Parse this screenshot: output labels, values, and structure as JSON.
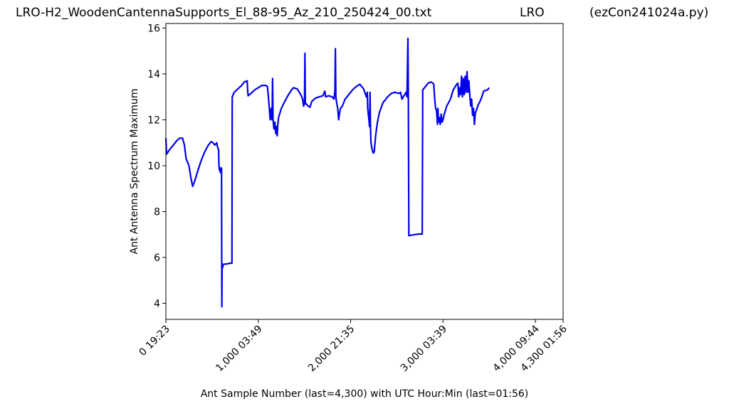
{
  "header": {
    "title_left": "LRO-H2_WoodenCantennaSupports_El_88-95_Az_210_250424_00.txt",
    "title_mid": "LRO",
    "title_right": "(ezCon241024a.py)"
  },
  "chart_data": {
    "type": "line",
    "xlabel": "Ant Sample Number (last=4,300) with UTC Hour:Min (last=01:56)",
    "ylabel": "Ant Antenna Spectrum Maximum",
    "xlim": [
      0,
      4300
    ],
    "ylim": [
      3.3,
      16.2
    ],
    "x_ticks": [
      {
        "value": 0,
        "label": "0  19:23"
      },
      {
        "value": 1000,
        "label": "1,000  03:49"
      },
      {
        "value": 2000,
        "label": "2,000  21:35"
      },
      {
        "value": 3000,
        "label": "3,000  03:39"
      },
      {
        "value": 4000,
        "label": "4,000  09:44"
      },
      {
        "value": 4300,
        "label": "4,300  01:56"
      }
    ],
    "y_ticks": [
      4,
      6,
      8,
      10,
      12,
      14,
      16
    ],
    "grid": false,
    "line_color": "#0000ee",
    "series": [
      {
        "values": [
          [
            0,
            11.2
          ],
          [
            8,
            10.5
          ],
          [
            40,
            10.7
          ],
          [
            80,
            10.9
          ],
          [
            120,
            11.1
          ],
          [
            150,
            11.2
          ],
          [
            180,
            11.2
          ],
          [
            200,
            10.9
          ],
          [
            220,
            10.3
          ],
          [
            250,
            10.0
          ],
          [
            270,
            9.5
          ],
          [
            290,
            9.1
          ],
          [
            310,
            9.3
          ],
          [
            340,
            9.7
          ],
          [
            380,
            10.2
          ],
          [
            420,
            10.6
          ],
          [
            460,
            10.9
          ],
          [
            490,
            11.05
          ],
          [
            510,
            11.0
          ],
          [
            530,
            10.9
          ],
          [
            550,
            11.0
          ],
          [
            560,
            10.8
          ],
          [
            570,
            10.7
          ],
          [
            575,
            10.0
          ],
          [
            580,
            9.8
          ],
          [
            585,
            9.9
          ],
          [
            590,
            9.7
          ],
          [
            595,
            9.9
          ],
          [
            600,
            9.8
          ],
          [
            603,
            9.9
          ],
          [
            606,
            3.85
          ],
          [
            609,
            5.7
          ],
          [
            614,
            5.55
          ],
          [
            620,
            5.7
          ],
          [
            660,
            5.72
          ],
          [
            700,
            5.75
          ],
          [
            715,
            5.75
          ],
          [
            718,
            13.0
          ],
          [
            740,
            13.2
          ],
          [
            780,
            13.35
          ],
          [
            820,
            13.5
          ],
          [
            850,
            13.65
          ],
          [
            880,
            13.7
          ],
          [
            885,
            13.3
          ],
          [
            890,
            13.05
          ],
          [
            920,
            13.15
          ],
          [
            960,
            13.3
          ],
          [
            1000,
            13.4
          ],
          [
            1040,
            13.5
          ],
          [
            1080,
            13.5
          ],
          [
            1100,
            13.45
          ],
          [
            1110,
            13.0
          ],
          [
            1120,
            12.5
          ],
          [
            1125,
            12.2
          ],
          [
            1130,
            12.0
          ],
          [
            1140,
            12.5
          ],
          [
            1145,
            12.1
          ],
          [
            1150,
            12.0
          ],
          [
            1155,
            13.8
          ],
          [
            1160,
            12.0
          ],
          [
            1170,
            11.6
          ],
          [
            1180,
            11.9
          ],
          [
            1190,
            11.4
          ],
          [
            1195,
            11.7
          ],
          [
            1200,
            11.5
          ],
          [
            1205,
            11.3
          ],
          [
            1210,
            11.7
          ],
          [
            1220,
            12.1
          ],
          [
            1250,
            12.5
          ],
          [
            1280,
            12.75
          ],
          [
            1320,
            13.05
          ],
          [
            1360,
            13.3
          ],
          [
            1380,
            13.4
          ],
          [
            1420,
            13.35
          ],
          [
            1460,
            13.1
          ],
          [
            1480,
            12.9
          ],
          [
            1490,
            12.6
          ],
          [
            1500,
            12.7
          ],
          [
            1505,
            14.9
          ],
          [
            1510,
            12.7
          ],
          [
            1520,
            12.7
          ],
          [
            1540,
            12.6
          ],
          [
            1560,
            12.55
          ],
          [
            1580,
            12.8
          ],
          [
            1620,
            12.95
          ],
          [
            1660,
            13.0
          ],
          [
            1700,
            13.05
          ],
          [
            1720,
            13.25
          ],
          [
            1730,
            13.0
          ],
          [
            1760,
            13.05
          ],
          [
            1800,
            13.0
          ],
          [
            1820,
            12.9
          ],
          [
            1830,
            13.3
          ],
          [
            1835,
            15.1
          ],
          [
            1840,
            13.0
          ],
          [
            1850,
            12.7
          ],
          [
            1860,
            12.5
          ],
          [
            1870,
            12.0
          ],
          [
            1880,
            12.3
          ],
          [
            1890,
            12.5
          ],
          [
            1910,
            12.6
          ],
          [
            1940,
            12.9
          ],
          [
            1980,
            13.1
          ],
          [
            2020,
            13.3
          ],
          [
            2060,
            13.45
          ],
          [
            2080,
            13.5
          ],
          [
            2100,
            13.55
          ],
          [
            2140,
            13.35
          ],
          [
            2170,
            13.0
          ],
          [
            2180,
            13.2
          ],
          [
            2185,
            12.5
          ],
          [
            2190,
            12.3
          ],
          [
            2200,
            11.9
          ],
          [
            2205,
            11.7
          ],
          [
            2210,
            13.2
          ],
          [
            2215,
            11.7
          ],
          [
            2220,
            11.0
          ],
          [
            2230,
            10.75
          ],
          [
            2245,
            10.55
          ],
          [
            2255,
            10.6
          ],
          [
            2270,
            11.3
          ],
          [
            2290,
            11.9
          ],
          [
            2310,
            12.3
          ],
          [
            2350,
            12.75
          ],
          [
            2400,
            13.0
          ],
          [
            2440,
            13.15
          ],
          [
            2480,
            13.2
          ],
          [
            2520,
            13.15
          ],
          [
            2540,
            13.2
          ],
          [
            2555,
            12.9
          ],
          [
            2570,
            13.0
          ],
          [
            2600,
            13.2
          ],
          [
            2610,
            13.0
          ],
          [
            2620,
            15.55
          ],
          [
            2625,
            13.0
          ],
          [
            2630,
            6.95
          ],
          [
            2660,
            6.97
          ],
          [
            2700,
            7.0
          ],
          [
            2740,
            7.02
          ],
          [
            2775,
            7.02
          ],
          [
            2780,
            13.3
          ],
          [
            2800,
            13.4
          ],
          [
            2840,
            13.6
          ],
          [
            2870,
            13.65
          ],
          [
            2890,
            13.6
          ],
          [
            2900,
            13.55
          ],
          [
            2910,
            12.9
          ],
          [
            2920,
            12.5
          ],
          [
            2930,
            12.4
          ],
          [
            2940,
            11.8
          ],
          [
            2945,
            12.5
          ],
          [
            2950,
            11.9
          ],
          [
            2960,
            12.1
          ],
          [
            2970,
            11.8
          ],
          [
            2980,
            12.25
          ],
          [
            2990,
            11.9
          ],
          [
            3000,
            12.0
          ],
          [
            3010,
            12.2
          ],
          [
            3040,
            12.6
          ],
          [
            3080,
            12.9
          ],
          [
            3110,
            13.3
          ],
          [
            3140,
            13.5
          ],
          [
            3160,
            13.6
          ],
          [
            3170,
            13.0
          ],
          [
            3180,
            13.4
          ],
          [
            3190,
            13.1
          ],
          [
            3200,
            13.9
          ],
          [
            3210,
            13.0
          ],
          [
            3220,
            13.8
          ],
          [
            3230,
            13.1
          ],
          [
            3240,
            13.9
          ],
          [
            3250,
            13.2
          ],
          [
            3260,
            14.1
          ],
          [
            3270,
            13.2
          ],
          [
            3280,
            13.7
          ],
          [
            3290,
            13.1
          ],
          [
            3300,
            12.6
          ],
          [
            3310,
            12.9
          ],
          [
            3320,
            12.2
          ],
          [
            3330,
            12.5
          ],
          [
            3340,
            11.8
          ],
          [
            3350,
            12.3
          ],
          [
            3360,
            12.4
          ],
          [
            3380,
            12.65
          ],
          [
            3400,
            12.8
          ],
          [
            3420,
            13.0
          ],
          [
            3440,
            13.25
          ],
          [
            3480,
            13.3
          ],
          [
            3500,
            13.4
          ]
        ]
      }
    ]
  }
}
